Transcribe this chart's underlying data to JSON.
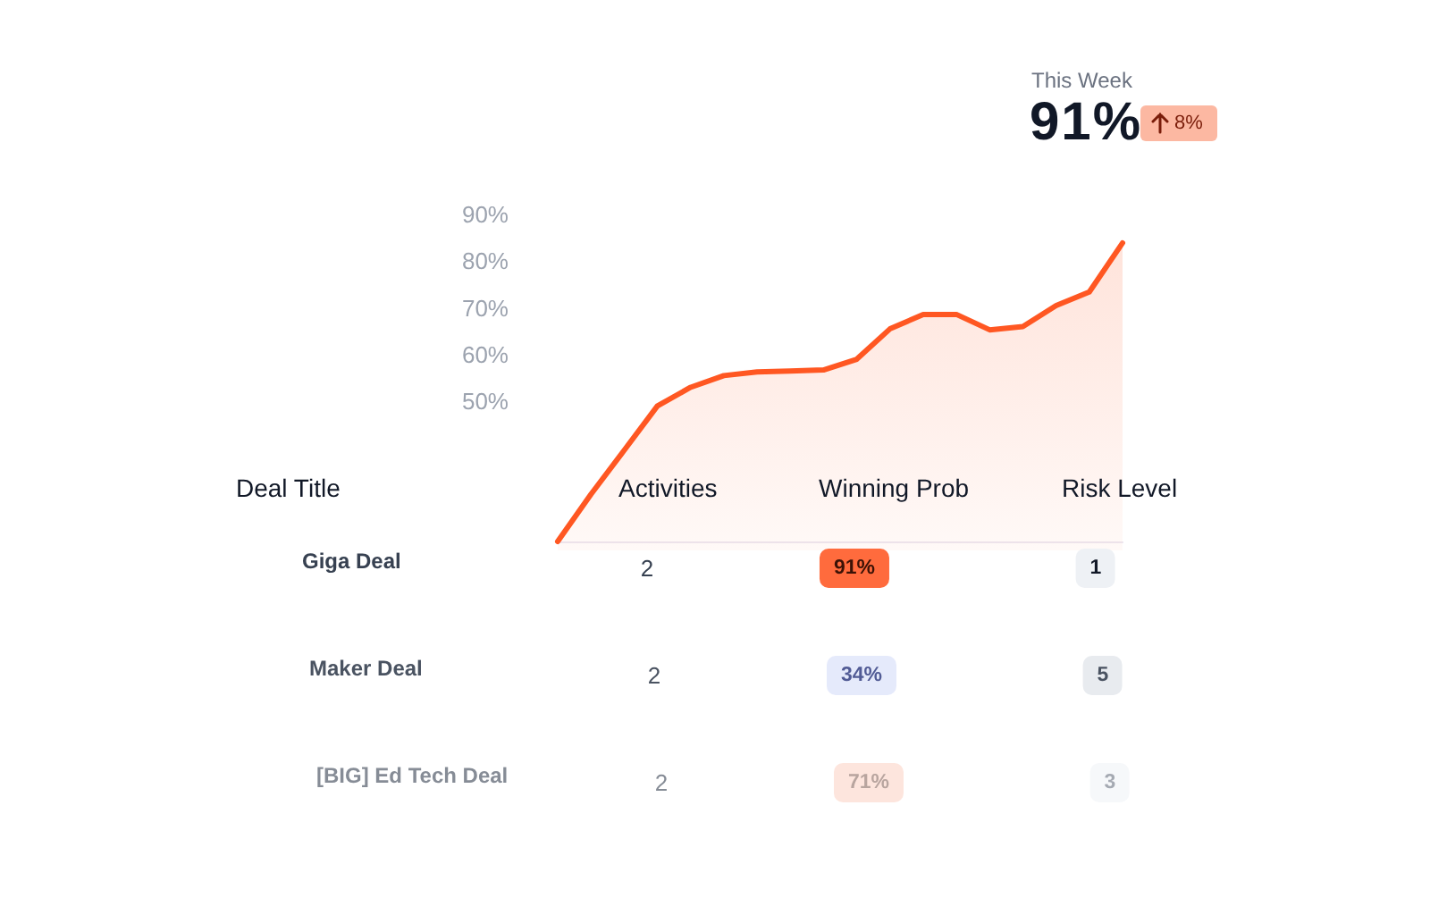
{
  "chart_data": [
    {
      "type": "other",
      "title": "This Week",
      "annotations": [
        "91%",
        "8%"
      ]
    },
    {
      "type": "area",
      "categories": [
        null,
        null,
        null,
        null,
        null,
        null,
        null,
        null,
        null,
        null,
        null,
        null,
        null,
        null,
        null,
        null,
        null,
        null
      ],
      "series": [
        {
          "color": "#ff5722",
          "values": [
            20,
            30.1,
            39.5,
            49,
            53,
            55.5,
            56.3,
            56.5,
            56.7,
            59,
            65.5,
            68.6,
            68.6,
            65.3,
            66,
            70.5,
            73.4,
            83.9
          ]
        }
      ],
      "ylim": [
        20,
        90
      ],
      "yticks": [
        {
          "value": 50,
          "label": "50%"
        },
        {
          "value": 60,
          "label": "60%"
        },
        {
          "value": 70,
          "label": "70%"
        },
        {
          "value": 80,
          "label": "80%"
        },
        {
          "value": 90,
          "label": "90%"
        }
      ],
      "tick_labels": "y",
      "grid": false
    },
    {
      "type": "other",
      "annotations": [
        "Deal Title",
        "Activities",
        "Winning Prob",
        "Risk Level",
        "Giga Deal",
        "2",
        "91%",
        "1",
        "Maker Deal",
        "2",
        "34%",
        "5",
        "[BIG] Ed Tech Deal",
        "2",
        "71%",
        "3"
      ]
    }
  ]
}
